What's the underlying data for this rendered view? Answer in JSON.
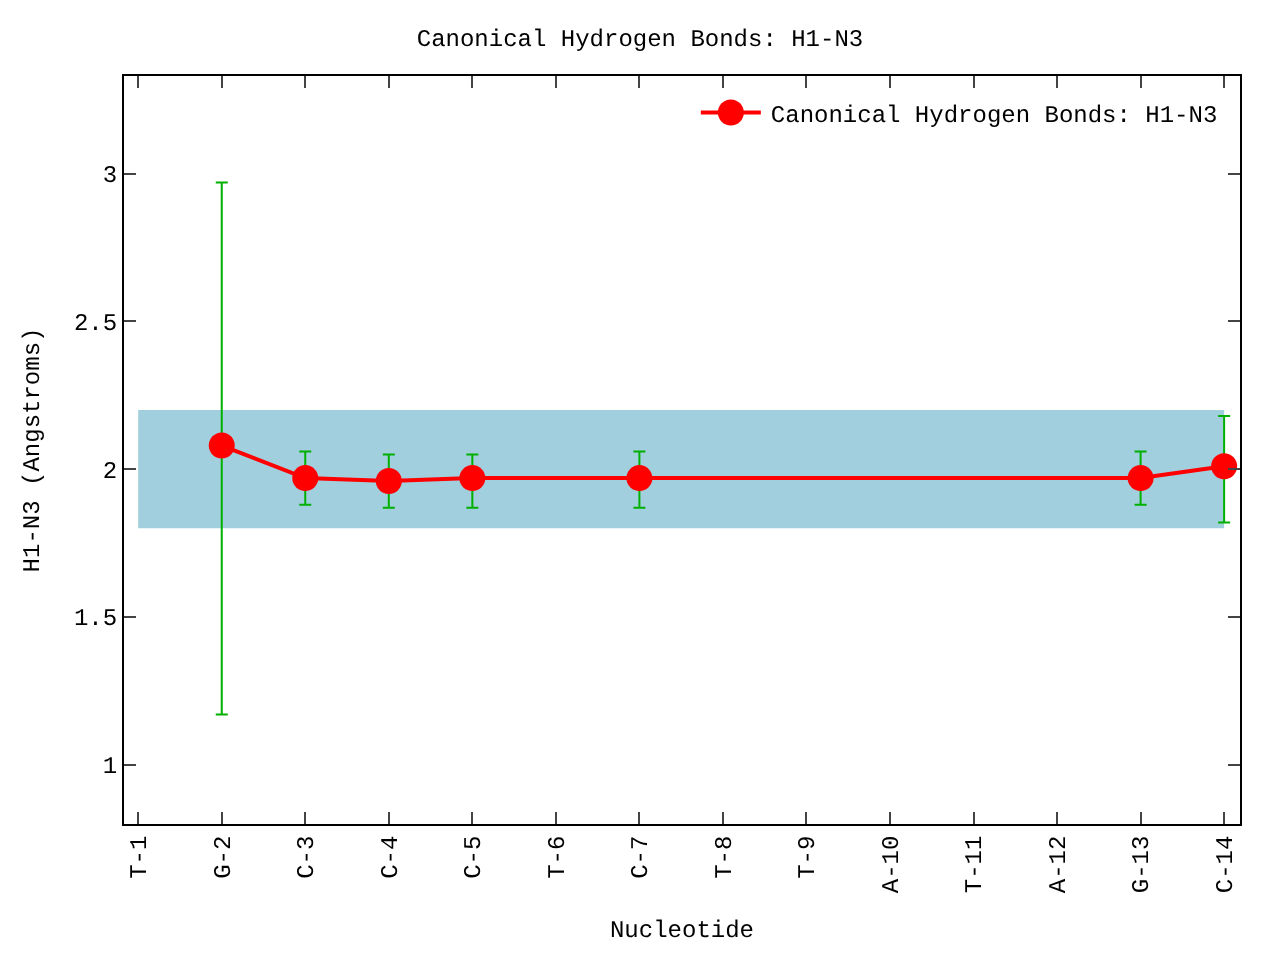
{
  "chart_data": {
    "type": "line",
    "title": "Canonical Hydrogen Bonds: H1-N3",
    "xlabel": "Nucleotide",
    "ylabel": "H1-N3 (Angstroms)",
    "categories": [
      "T-1",
      "G-2",
      "C-3",
      "C-4",
      "C-5",
      "T-6",
      "C-7",
      "T-8",
      "T-9",
      "A-10",
      "T-11",
      "A-12",
      "G-13",
      "C-14"
    ],
    "series": [
      {
        "name": "Canonical Hydrogen Bonds: H1-N3",
        "color": "#ff0000",
        "values": [
          null,
          2.08,
          1.97,
          1.96,
          1.97,
          null,
          1.97,
          null,
          null,
          null,
          null,
          null,
          1.97,
          2.01
        ],
        "errors": [
          null,
          [
            1.17,
            2.97
          ],
          [
            1.88,
            2.06
          ],
          [
            1.87,
            2.05
          ],
          [
            1.87,
            2.05
          ],
          null,
          [
            1.87,
            2.06
          ],
          null,
          null,
          null,
          null,
          null,
          [
            1.88,
            2.06
          ],
          [
            1.82,
            2.18
          ]
        ]
      }
    ],
    "ylim": [
      0.8,
      3.33
    ],
    "yticks": [
      1,
      1.5,
      2,
      2.5,
      3
    ],
    "bands": [
      {
        "axis": "y",
        "from": 1.8,
        "to": 2.2,
        "color": "#a2cfde"
      }
    ],
    "marker": "circle",
    "line_style": "solid",
    "legend": "top right",
    "grid": false
  }
}
